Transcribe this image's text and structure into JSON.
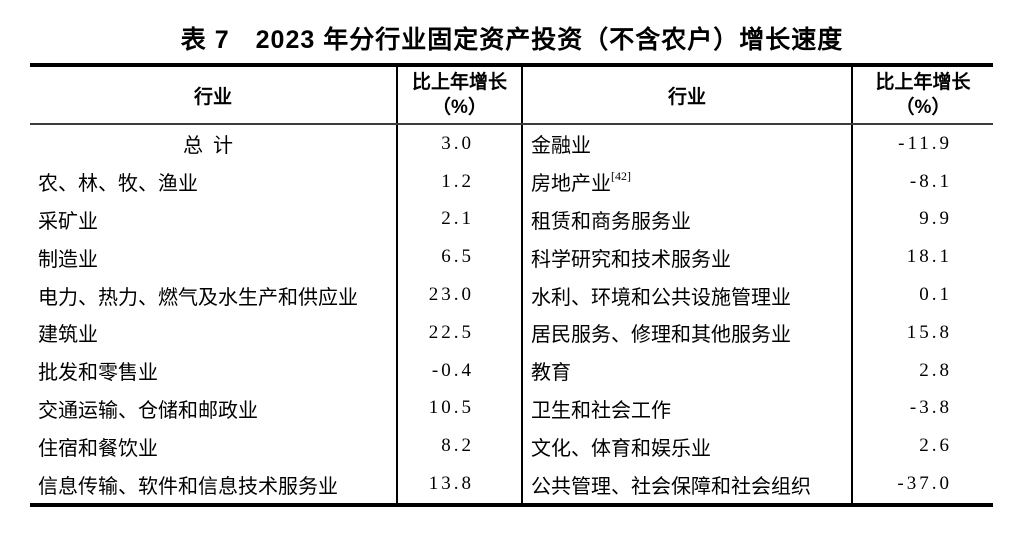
{
  "page": {
    "title": "表 7　2023 年分行业固定资产投资（不含农户）增长速度"
  },
  "table": {
    "headers": {
      "industry_left": "行业",
      "growth_left_line1": "比上年增长",
      "growth_left_line2": "（%）",
      "industry_right": "行业",
      "growth_right_line1": "比上年增长",
      "growth_right_line2": "（%）"
    },
    "rows": [
      {
        "left_industry": "总计",
        "left_center": true,
        "left_growth": "3.0",
        "right_industry": "金融业",
        "right_growth": "-11.9"
      },
      {
        "left_industry": "农、林、牧、渔业",
        "left_growth": "1.2",
        "right_industry": "房地产业",
        "right_note": "[42]",
        "right_growth": "-8.1"
      },
      {
        "left_industry": "采矿业",
        "left_growth": "2.1",
        "right_industry": "租赁和商务服务业",
        "right_growth": "9.9"
      },
      {
        "left_industry": "制造业",
        "left_growth": "6.5",
        "right_industry": "科学研究和技术服务业",
        "right_growth": "18.1"
      },
      {
        "left_industry": "电力、热力、燃气及水生产和供应业",
        "left_growth": "23.0",
        "right_industry": "水利、环境和公共设施管理业",
        "right_growth": "0.1"
      },
      {
        "left_industry": "建筑业",
        "left_growth": "22.5",
        "right_industry": "居民服务、修理和其他服务业",
        "right_growth": "15.8"
      },
      {
        "left_industry": "批发和零售业",
        "left_growth": "-0.4",
        "right_industry": "教育",
        "right_growth": "2.8"
      },
      {
        "left_industry": "交通运输、仓储和邮政业",
        "left_growth": "10.5",
        "right_industry": "卫生和社会工作",
        "right_growth": "-3.8"
      },
      {
        "left_industry": "住宿和餐饮业",
        "left_growth": "8.2",
        "right_industry": "文化、体育和娱乐业",
        "right_growth": "2.6"
      },
      {
        "left_industry": "信息传输、软件和信息技术服务业",
        "left_growth": "13.8",
        "right_industry": "公共管理、社会保障和社会组织",
        "right_growth": "-37.0"
      }
    ]
  },
  "chart_data": {
    "type": "table",
    "title": "表 7　2023 年分行业固定资产投资（不含农户）增长速度",
    "columns": [
      "行业",
      "比上年增长（%）"
    ],
    "rows": [
      [
        "总计",
        3.0
      ],
      [
        "农、林、牧、渔业",
        1.2
      ],
      [
        "采矿业",
        2.1
      ],
      [
        "制造业",
        6.5
      ],
      [
        "电力、热力、燃气及水生产和供应业",
        23.0
      ],
      [
        "建筑业",
        22.5
      ],
      [
        "批发和零售业",
        -0.4
      ],
      [
        "交通运输、仓储和邮政业",
        10.5
      ],
      [
        "住宿和餐饮业",
        8.2
      ],
      [
        "信息传输、软件和信息技术服务业",
        13.8
      ],
      [
        "金融业",
        -11.9
      ],
      [
        "房地产业",
        -8.1
      ],
      [
        "租赁和商务服务业",
        9.9
      ],
      [
        "科学研究和技术服务业",
        18.1
      ],
      [
        "水利、环境和公共设施管理业",
        0.1
      ],
      [
        "居民服务、修理和其他服务业",
        15.8
      ],
      [
        "教育",
        2.8
      ],
      [
        "卫生和社会工作",
        -3.8
      ],
      [
        "文化、体育和娱乐业",
        2.6
      ],
      [
        "公共管理、社会保障和社会组织",
        -37.0
      ]
    ],
    "footnote_marker": "[42]",
    "colors": {
      "text": "#000000",
      "border": "#000000",
      "background": "#ffffff"
    }
  }
}
